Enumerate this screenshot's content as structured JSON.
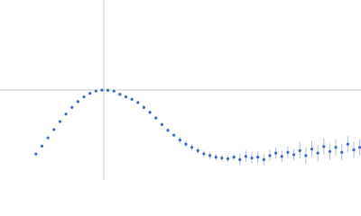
{
  "chart_data": {
    "type": "scatter",
    "color": "#3f6bbf",
    "error_color": "#a9bde3",
    "ref_color": "#cccccc",
    "xlim": [
      0,
      6.02
    ],
    "ylim": [
      0,
      2.208
    ],
    "xref": 1.732,
    "yref": 1.104,
    "x": [
      0.6,
      0.7,
      0.8,
      0.9,
      1.0,
      1.1,
      1.2,
      1.3,
      1.4,
      1.5,
      1.6,
      1.7,
      1.8,
      1.9,
      2.0,
      2.1,
      2.2,
      2.3,
      2.4,
      2.5,
      2.6,
      2.7,
      2.8,
      2.9,
      3.0,
      3.1,
      3.2,
      3.3,
      3.4,
      3.5,
      3.6,
      3.7,
      3.8,
      3.9,
      4.0,
      4.1,
      4.2,
      4.3,
      4.4,
      4.5,
      4.6,
      4.7,
      4.8,
      4.9,
      5.0,
      5.1,
      5.2,
      5.3,
      5.4,
      5.5,
      5.6,
      5.7,
      5.8,
      5.9,
      6.0
    ],
    "values": [
      0.319,
      0.416,
      0.517,
      0.618,
      0.717,
      0.809,
      0.891,
      0.962,
      1.02,
      1.063,
      1.091,
      1.103,
      1.1,
      1.09,
      1.05,
      1.02,
      0.99,
      0.95,
      0.89,
      0.83,
      0.76,
      0.68,
      0.61,
      0.55,
      0.49,
      0.44,
      0.4,
      0.36,
      0.32,
      0.3,
      0.28,
      0.27,
      0.26,
      0.28,
      0.25,
      0.29,
      0.27,
      0.28,
      0.25,
      0.3,
      0.33,
      0.29,
      0.34,
      0.31,
      0.36,
      0.3,
      0.38,
      0.33,
      0.41,
      0.35,
      0.4,
      0.34,
      0.44,
      0.37,
      0.4
    ],
    "errors": [
      0.01,
      0.01,
      0.01,
      0.01,
      0.01,
      0.01,
      0.01,
      0.01,
      0.01,
      0.01,
      0.01,
      0.01,
      0.01,
      0.01,
      0.02,
      0.02,
      0.02,
      0.02,
      0.02,
      0.02,
      0.02,
      0.02,
      0.02,
      0.02,
      0.04,
      0.04,
      0.04,
      0.04,
      0.04,
      0.04,
      0.04,
      0.04,
      0.04,
      0.04,
      0.07,
      0.07,
      0.07,
      0.07,
      0.07,
      0.07,
      0.07,
      0.07,
      0.07,
      0.07,
      0.1,
      0.1,
      0.1,
      0.1,
      0.1,
      0.1,
      0.1,
      0.1,
      0.1,
      0.1,
      0.1
    ]
  }
}
